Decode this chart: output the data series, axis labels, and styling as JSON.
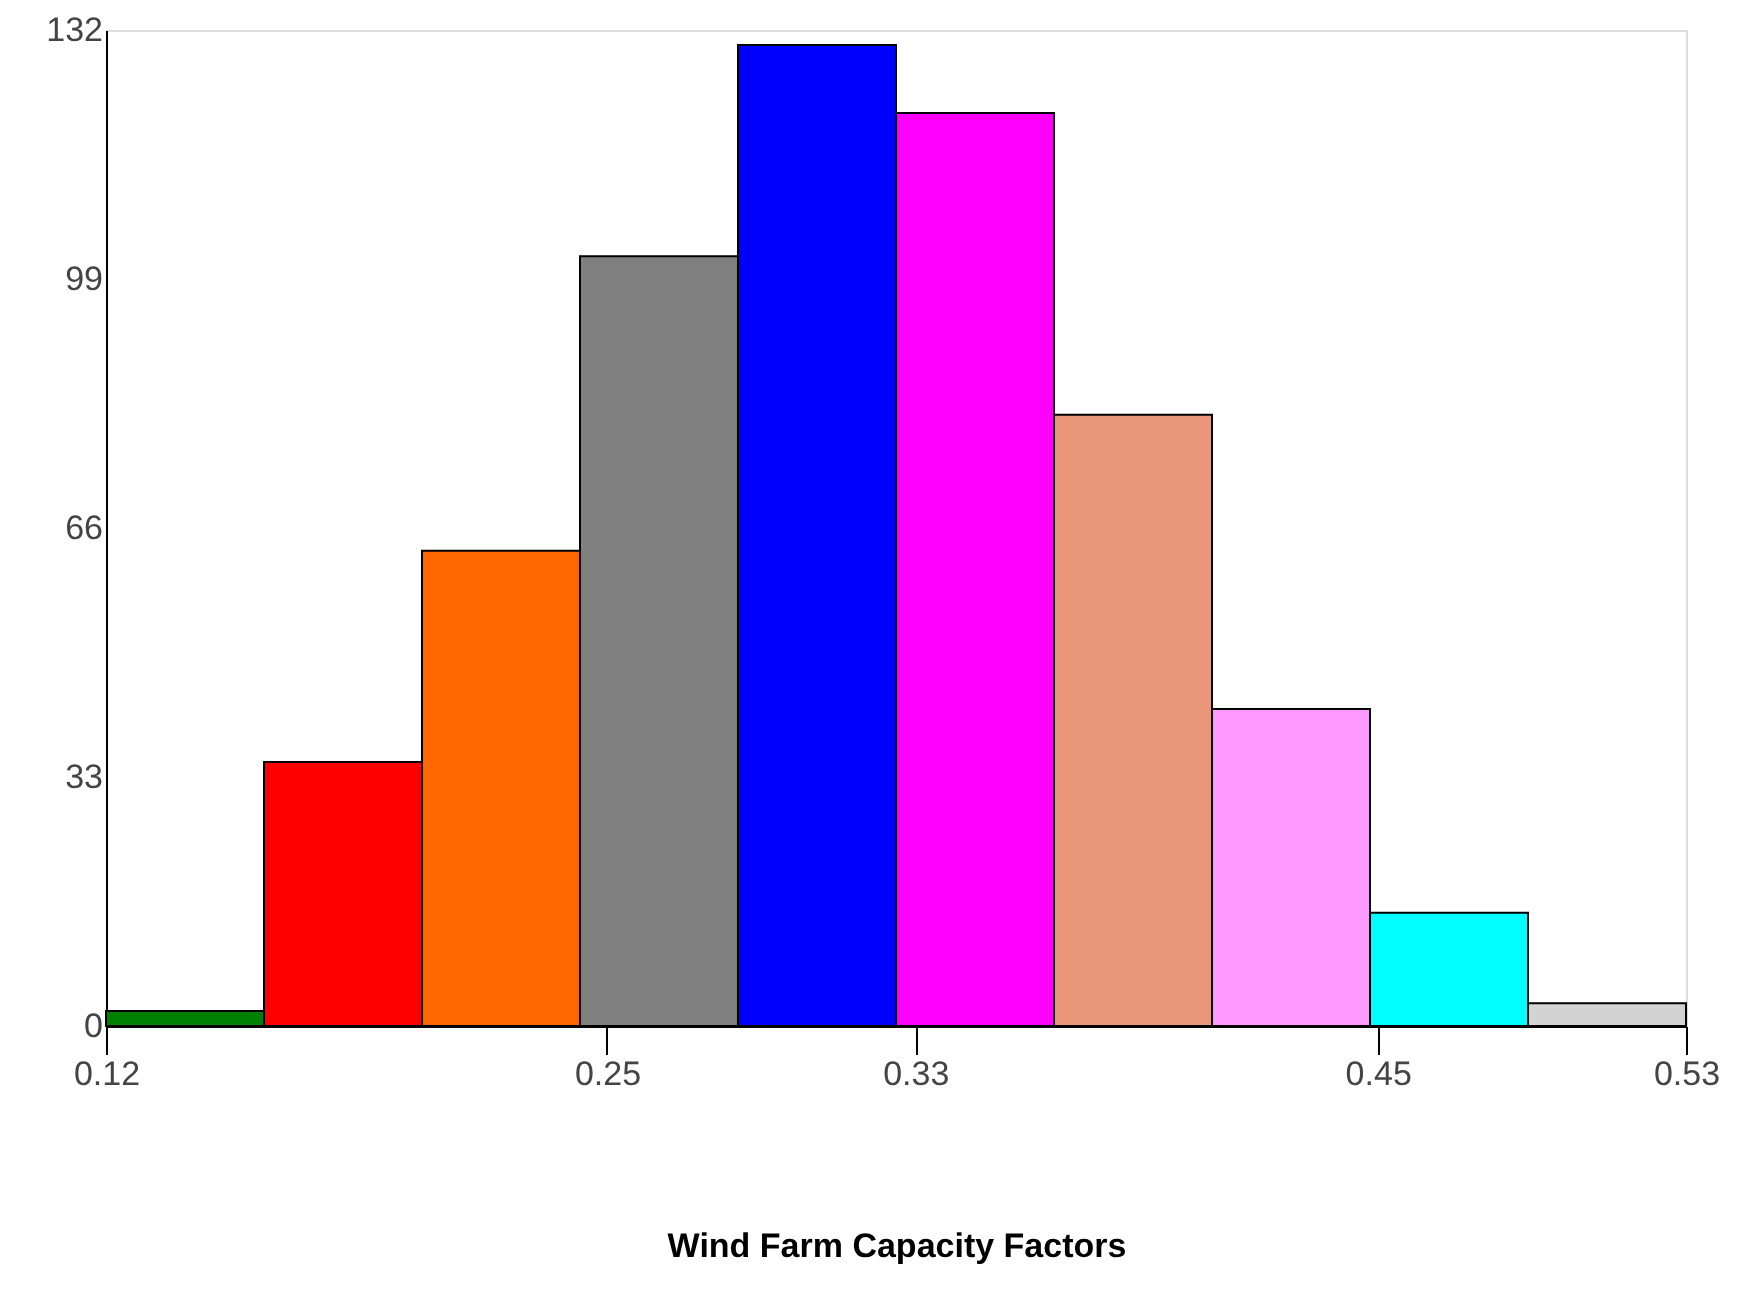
{
  "chart_data": {
    "type": "histogram",
    "xlabel": "Wind Farm Capacity Factors",
    "bins": [
      0.12,
      0.161,
      0.202,
      0.243,
      0.284,
      0.325,
      0.366,
      0.407,
      0.448,
      0.489,
      0.53
    ],
    "values": [
      2,
      35,
      63,
      102,
      130,
      121,
      81,
      42,
      15,
      3
    ],
    "colors": [
      "#008000",
      "#ff0000",
      "#ff6600",
      "#808080",
      "#0000ff",
      "#ff00ff",
      "#e9967a",
      "#ff99ff",
      "#00ffff",
      "#d3d3d3"
    ],
    "xlim": [
      0.12,
      0.53
    ],
    "xticks": [
      0.12,
      0.25,
      0.33,
      0.45,
      0.53
    ],
    "ylim": [
      0,
      132
    ],
    "yticks": [
      0,
      33,
      66,
      99,
      132
    ],
    "grid": false
  }
}
